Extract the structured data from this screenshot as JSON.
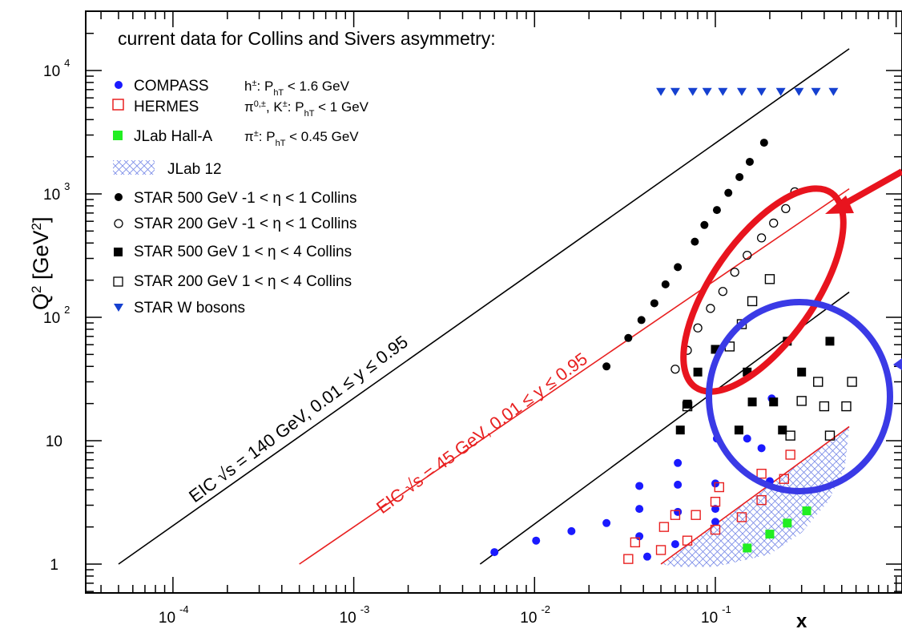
{
  "chart_data": {
    "type": "scatter",
    "title": "current data for Collins and Sivers asymmetry:",
    "xlabel": "x",
    "ylabel": "Q",
    "ylabel_sup": "2",
    "ylabel_unit_open": " [GeV",
    "ylabel_unit_sup": "2",
    "ylabel_unit_close": "]",
    "x_scale": "log",
    "y_scale": "log",
    "xlim": [
      3.2e-05,
      0.6
    ],
    "ylim": [
      0.7,
      30000
    ],
    "x_ticks": [
      {
        "value": 0.0001,
        "base": "10",
        "exp": "-4"
      },
      {
        "value": 0.001,
        "base": "10",
        "exp": "-3"
      },
      {
        "value": 0.01,
        "base": "10",
        "exp": "-2"
      },
      {
        "value": 0.1,
        "base": "10",
        "exp": "-1"
      }
    ],
    "y_ticks": [
      {
        "value": 1,
        "base": "1",
        "exp": ""
      },
      {
        "value": 10,
        "base": "10",
        "exp": ""
      },
      {
        "value": 100,
        "base": "10",
        "exp": "2"
      },
      {
        "value": 1000,
        "base": "10",
        "exp": "3"
      },
      {
        "value": 10000,
        "base": "10",
        "exp": "4"
      }
    ],
    "series": [
      {
        "name": "COMPASS",
        "note": "h±: PhT < 1.6 GeV",
        "marker": "circle",
        "filled": true,
        "color": "#1a1aff",
        "points": [
          [
            0.006,
            1.25
          ],
          [
            0.0102,
            1.55
          ],
          [
            0.016,
            1.85
          ],
          [
            0.025,
            2.15
          ],
          [
            0.038,
            1.68
          ],
          [
            0.038,
            2.8
          ],
          [
            0.038,
            4.3
          ],
          [
            0.042,
            1.15
          ],
          [
            0.06,
            1.45
          ],
          [
            0.062,
            2.65
          ],
          [
            0.062,
            4.4
          ],
          [
            0.062,
            6.6
          ],
          [
            0.1,
            2.2
          ],
          [
            0.1,
            2.8
          ],
          [
            0.1,
            4.5
          ],
          [
            0.102,
            10.4
          ],
          [
            0.15,
            10.4
          ],
          [
            0.18,
            8.7
          ],
          [
            0.2,
            4.7
          ],
          [
            0.205,
            22
          ]
        ]
      },
      {
        "name": "HERMES",
        "note": "π0,±, K±: PhT < 1 GeV",
        "marker": "square",
        "filled": false,
        "color": "#e82020",
        "points": [
          [
            0.033,
            1.1
          ],
          [
            0.036,
            1.5
          ],
          [
            0.05,
            1.3
          ],
          [
            0.052,
            2.0
          ],
          [
            0.06,
            2.5
          ],
          [
            0.07,
            1.55
          ],
          [
            0.078,
            2.5
          ],
          [
            0.1,
            1.9
          ],
          [
            0.1,
            3.2
          ],
          [
            0.105,
            4.2
          ],
          [
            0.14,
            2.4
          ],
          [
            0.18,
            3.3
          ],
          [
            0.18,
            5.4
          ],
          [
            0.24,
            4.9
          ],
          [
            0.26,
            7.7
          ]
        ]
      },
      {
        "name": "JLab Hall-A",
        "note": "π±: PhT < 0.45 GeV",
        "marker": "square",
        "filled": true,
        "color": "#22ee22",
        "points": [
          [
            0.15,
            1.35
          ],
          [
            0.2,
            1.75
          ],
          [
            0.25,
            2.15
          ],
          [
            0.32,
            2.7
          ]
        ]
      },
      {
        "name": "JLab 12",
        "note": "",
        "marker": "hatch",
        "filled": false,
        "color": "#7f8fe8",
        "points": []
      },
      {
        "name": "STAR 500 GeV -1 < η < 1 Collins",
        "marker": "circle",
        "filled": true,
        "color": "#000000",
        "points": [
          [
            0.025,
            40
          ],
          [
            0.033,
            68
          ],
          [
            0.039,
            95
          ],
          [
            0.046,
            130
          ],
          [
            0.053,
            185
          ],
          [
            0.062,
            255
          ],
          [
            0.077,
            410
          ],
          [
            0.087,
            560
          ],
          [
            0.102,
            740
          ],
          [
            0.118,
            1020
          ],
          [
            0.136,
            1370
          ],
          [
            0.155,
            1820
          ],
          [
            0.186,
            2600
          ]
        ]
      },
      {
        "name": "STAR 200 GeV -1 < η < 1 Collins",
        "marker": "circle",
        "filled": false,
        "color": "#000000",
        "points": [
          [
            0.06,
            38
          ],
          [
            0.07,
            54
          ],
          [
            0.08,
            82
          ],
          [
            0.094,
            118
          ],
          [
            0.11,
            162
          ],
          [
            0.128,
            232
          ],
          [
            0.15,
            318
          ],
          [
            0.18,
            440
          ],
          [
            0.21,
            580
          ],
          [
            0.245,
            760
          ],
          [
            0.275,
            1040
          ]
        ]
      },
      {
        "name": "STAR 500 GeV 1 < η < 4 Collins",
        "marker": "square",
        "filled": true,
        "color": "#000000",
        "points": [
          [
            0.064,
            12.2
          ],
          [
            0.07,
            19.8
          ],
          [
            0.08,
            36
          ],
          [
            0.1,
            55
          ],
          [
            0.135,
            12.2
          ],
          [
            0.15,
            36
          ],
          [
            0.16,
            20.6
          ],
          [
            0.21,
            20.6
          ],
          [
            0.235,
            12.2
          ],
          [
            0.25,
            64
          ],
          [
            0.3,
            36
          ],
          [
            0.43,
            64
          ]
        ]
      },
      {
        "name": "STAR 200 GeV 1 < η < 4 Collins",
        "marker": "square",
        "filled": false,
        "color": "#000000",
        "points": [
          [
            0.07,
            19
          ],
          [
            0.12,
            58
          ],
          [
            0.14,
            88
          ],
          [
            0.16,
            135
          ],
          [
            0.2,
            204
          ],
          [
            0.26,
            11
          ],
          [
            0.3,
            21
          ],
          [
            0.37,
            30
          ],
          [
            0.43,
            11
          ],
          [
            0.4,
            19
          ],
          [
            0.53,
            19
          ],
          [
            0.57,
            30
          ]
        ]
      },
      {
        "name": "STAR W bosons",
        "marker": "triangle-down",
        "filled": true,
        "color": "#1540d0",
        "points": [
          [
            0.05,
            6700
          ],
          [
            0.06,
            6700
          ],
          [
            0.075,
            6700
          ],
          [
            0.09,
            6700
          ],
          [
            0.11,
            6700
          ],
          [
            0.14,
            6700
          ],
          [
            0.18,
            6700
          ],
          [
            0.23,
            6700
          ],
          [
            0.29,
            6700
          ],
          [
            0.36,
            6700
          ],
          [
            0.45,
            6700
          ]
        ]
      }
    ],
    "lines": [
      {
        "name": "EIC 140",
        "color": "#000000",
        "from": [
          5e-05,
          1
        ],
        "to": [
          0.55,
          15000
        ],
        "label": "EIC √s = 140 GeV, 0.01 ≤ y ≤ 0.95"
      },
      {
        "name": "EIC 45",
        "color": "#e82020",
        "from": [
          0.0005,
          1
        ],
        "to": [
          0.55,
          1100
        ],
        "label": "EIC √s = 45 GeV, 0.01 ≤ y ≤ 0.95"
      },
      {
        "name": "EIC 140 low",
        "color": "#000000",
        "from": [
          0.005,
          1
        ],
        "to": [
          0.55,
          160
        ],
        "label": ""
      },
      {
        "name": "EIC 45 low",
        "color": "#e82020",
        "from": [
          0.05,
          1
        ],
        "to": [
          0.55,
          13
        ],
        "label": ""
      }
    ],
    "overlays": [
      {
        "name": "red-highlight-ellipse",
        "color": "#e8141e"
      },
      {
        "name": "blue-highlight-ellipse",
        "color": "#3a3ae6"
      },
      {
        "name": "red-arrow",
        "color": "#e8141e"
      }
    ]
  }
}
